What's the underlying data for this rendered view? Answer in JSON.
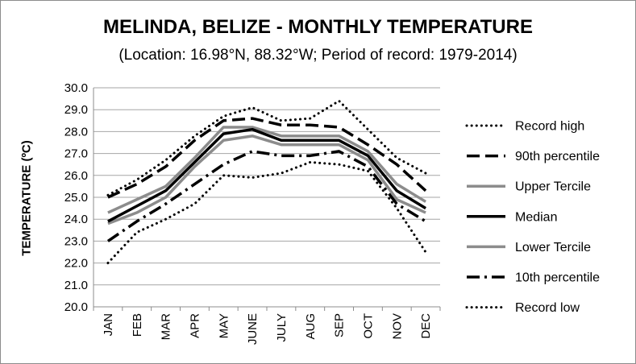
{
  "chart_data": {
    "type": "line",
    "title": "MELINDA, BELIZE - MONTHLY TEMPERATURE",
    "subtitle": "(Location: 16.98°N, 88.32°W; Period of record: 1979-2014)",
    "ylabel": "TEMPERATURE (ºC)",
    "xlabel": "",
    "categories": [
      "JAN",
      "FEB",
      "MAR",
      "APR",
      "MAY",
      "JUNE",
      "JULY",
      "AUG",
      "SEP",
      "OCT",
      "NOV",
      "DEC"
    ],
    "ylim": [
      20.0,
      30.0
    ],
    "yticks": [
      "20.0",
      "21.0",
      "22.0",
      "23.0",
      "24.0",
      "25.0",
      "26.0",
      "27.0",
      "28.0",
      "29.0",
      "30.0"
    ],
    "grid": true,
    "legend_position": "right",
    "series": [
      {
        "name": "Record high",
        "color": "#000000",
        "style": "dotted",
        "values": [
          25.1,
          25.8,
          26.7,
          27.8,
          28.7,
          29.1,
          28.5,
          28.6,
          29.4,
          28.1,
          26.8,
          26.1
        ]
      },
      {
        "name": "90th percentile",
        "color": "#000000",
        "style": "longdash",
        "values": [
          25.0,
          25.6,
          26.4,
          27.6,
          28.5,
          28.6,
          28.3,
          28.3,
          28.2,
          27.4,
          26.5,
          25.3
        ]
      },
      {
        "name": "Upper Tercile",
        "color": "#8c8c8c",
        "style": "solid",
        "values": [
          24.3,
          24.9,
          25.5,
          26.8,
          28.2,
          28.2,
          27.8,
          27.8,
          27.8,
          27.1,
          25.6,
          24.8
        ]
      },
      {
        "name": "Median",
        "color": "#000000",
        "style": "solid",
        "values": [
          23.9,
          24.6,
          25.3,
          26.6,
          27.9,
          28.1,
          27.6,
          27.6,
          27.6,
          26.9,
          25.3,
          24.5
        ]
      },
      {
        "name": "Lower Tercile",
        "color": "#8c8c8c",
        "style": "solid",
        "values": [
          23.8,
          24.3,
          25.0,
          26.4,
          27.6,
          27.8,
          27.4,
          27.4,
          27.4,
          26.7,
          24.9,
          24.3
        ]
      },
      {
        "name": "10th percentile",
        "color": "#000000",
        "style": "dashdot",
        "values": [
          23.0,
          23.9,
          24.7,
          25.6,
          26.5,
          27.1,
          26.9,
          26.9,
          27.1,
          26.4,
          24.7,
          23.9
        ]
      },
      {
        "name": "Record low",
        "color": "#000000",
        "style": "dotted",
        "values": [
          22.0,
          23.4,
          24.0,
          24.7,
          26.0,
          25.9,
          26.1,
          26.6,
          26.5,
          26.2,
          24.5,
          22.5
        ]
      }
    ]
  }
}
